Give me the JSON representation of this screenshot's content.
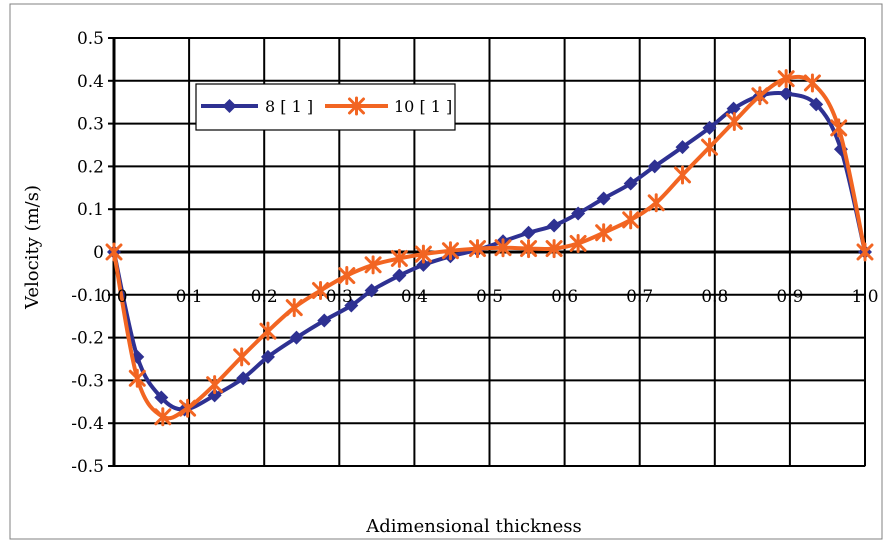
{
  "chart_data": {
    "type": "line",
    "xlabel": "Adimensional thickness",
    "ylabel": "Velocity (m/s)",
    "xlim": [
      0,
      1
    ],
    "ylim": [
      -0.5,
      0.5
    ],
    "xticks": [
      "0.0",
      "0.1",
      "0.2",
      "0.3",
      "0.4",
      "0.5",
      "0.6",
      "0.7",
      "0.8",
      "0.9",
      "1.0"
    ],
    "yticks": [
      "0.5",
      "0.4",
      "0.3",
      "0.2",
      "0.1",
      "0",
      "-0.1",
      "-0.2",
      "-0.3",
      "-0.4",
      "-0.5"
    ],
    "grid": true,
    "legend_position": "top-left",
    "series": [
      {
        "name": "8 [ 1 ]",
        "color": "#2e3192",
        "marker": "diamond",
        "x": [
          0.0,
          0.031,
          0.063,
          0.094,
          0.134,
          0.172,
          0.205,
          0.243,
          0.28,
          0.316,
          0.343,
          0.38,
          0.412,
          0.448,
          0.484,
          0.518,
          0.552,
          0.586,
          0.618,
          0.652,
          0.688,
          0.72,
          0.757,
          0.793,
          0.825,
          0.86,
          0.895,
          0.935,
          0.968,
          1.0
        ],
        "y": [
          0.0,
          -0.245,
          -0.34,
          -0.368,
          -0.335,
          -0.295,
          -0.245,
          -0.2,
          -0.16,
          -0.125,
          -0.09,
          -0.055,
          -0.03,
          -0.01,
          0.005,
          0.025,
          0.045,
          0.062,
          0.09,
          0.125,
          0.16,
          0.2,
          0.245,
          0.29,
          0.335,
          0.365,
          0.37,
          0.345,
          0.24,
          0.0
        ]
      },
      {
        "name": "10 [ 1 ]",
        "color": "#f26522",
        "marker": "asterisk",
        "x": [
          0.0,
          0.031,
          0.065,
          0.098,
          0.134,
          0.17,
          0.205,
          0.24,
          0.275,
          0.31,
          0.345,
          0.38,
          0.412,
          0.448,
          0.484,
          0.518,
          0.552,
          0.586,
          0.618,
          0.652,
          0.688,
          0.722,
          0.757,
          0.793,
          0.826,
          0.86,
          0.895,
          0.93,
          0.965,
          1.0
        ],
        "y": [
          0.0,
          -0.295,
          -0.385,
          -0.365,
          -0.31,
          -0.245,
          -0.185,
          -0.13,
          -0.09,
          -0.055,
          -0.03,
          -0.015,
          -0.005,
          0.003,
          0.008,
          0.01,
          0.008,
          0.008,
          0.02,
          0.045,
          0.075,
          0.115,
          0.18,
          0.245,
          0.305,
          0.365,
          0.405,
          0.395,
          0.29,
          0.0
        ]
      }
    ]
  }
}
